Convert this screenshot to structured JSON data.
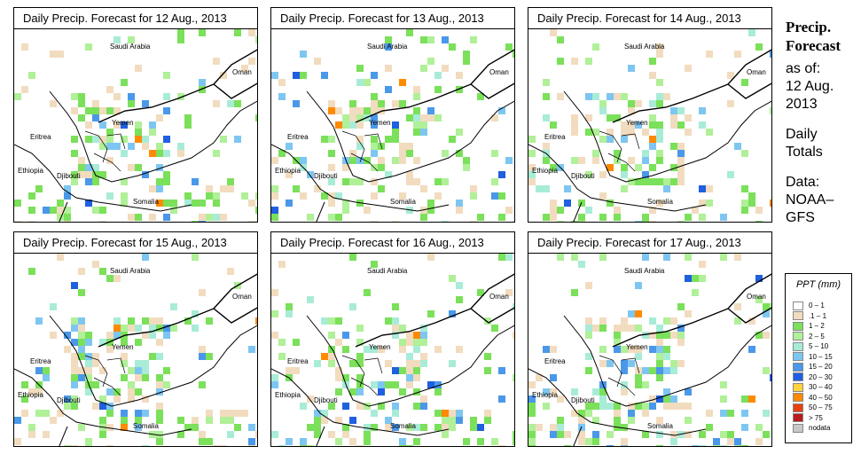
{
  "panels": [
    {
      "title": "Daily Precip. Forecast for  12 Aug., 2013",
      "seed": 11
    },
    {
      "title": "Daily Precip. Forecast for  13 Aug., 2013",
      "seed": 23
    },
    {
      "title": "Daily Precip. Forecast for  14 Aug., 2013",
      "seed": 37
    },
    {
      "title": "Daily Precip. Forecast for  15 Aug., 2013",
      "seed": 41
    },
    {
      "title": "Daily Precip. Forecast for  16 Aug., 2013",
      "seed": 53
    },
    {
      "title": "Daily Precip. Forecast for  17 Aug., 2013",
      "seed": 67
    }
  ],
  "map_labels": {
    "saudi_arabia": "Saudi Arabia",
    "oman": "Oman",
    "yemen": "Yemen",
    "eritrea": "Eritrea",
    "ethiopia": "Ethiopia",
    "djibouti": "Djibouti",
    "somalia": "Somalia"
  },
  "side": {
    "title_line1": "Precip.",
    "title_line2": "Forecast",
    "asof_line1": "as of:",
    "asof_line2": "12 Aug.",
    "asof_line3": "2013",
    "totals_line1": "Daily",
    "totals_line2": "Totals",
    "data_line1": "Data:",
    "data_line2": "NOAA–",
    "data_line3": "GFS"
  },
  "legend": {
    "title": "PPT (mm)",
    "entries": [
      {
        "label": "0 – 1",
        "color": "#ffffff"
      },
      {
        "label": ".1 – 1",
        "color": "#f2dcbf"
      },
      {
        "label": "1 – 2",
        "color": "#7be05a"
      },
      {
        "label": "2 – 5",
        "color": "#b0f098"
      },
      {
        "label": "5 – 10",
        "color": "#a8ecd8"
      },
      {
        "label": "10 – 15",
        "color": "#7ec6f2"
      },
      {
        "label": "15 – 20",
        "color": "#4a98ea"
      },
      {
        "label": "20 – 30",
        "color": "#1f5fe0"
      },
      {
        "label": "30 – 40",
        "color": "#ffd23a"
      },
      {
        "label": "40 – 50",
        "color": "#ff8a00"
      },
      {
        "label": "50 – 75",
        "color": "#e84010"
      },
      {
        "label": "> 75",
        "color": "#b81c1c"
      },
      {
        "label": "nodata",
        "color": "#c8c8c8"
      }
    ]
  }
}
